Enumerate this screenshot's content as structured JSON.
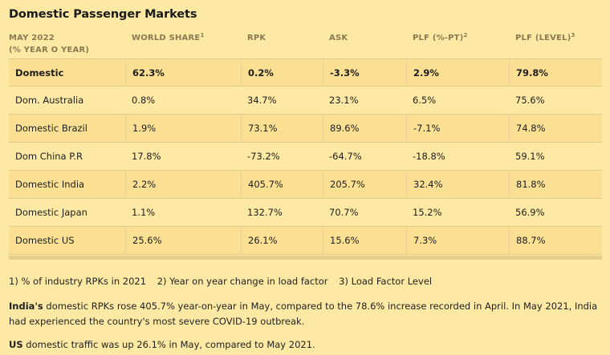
{
  "title": "Domestic Passenger Markets",
  "header": {
    "period_line1": "MAY 2022",
    "period_line2": "(% YEAR O YEAR)",
    "world_share": "WORLD SHARE",
    "world_share_sup": "1",
    "rpk": "RPK",
    "ask": "ASK",
    "plf_pt": "PLF (%-PT)",
    "plf_pt_sup": "2",
    "plf_level": "PLF (LEVEL)",
    "plf_level_sup": "3"
  },
  "rows": [
    {
      "market": "Domestic",
      "world_share": "62.3%",
      "rpk": "0.2%",
      "ask": "-3.3%",
      "plf_pt": "2.9%",
      "plf_level": "79.8%"
    },
    {
      "market": "Dom. Australia",
      "world_share": "0.8%",
      "rpk": "34.7%",
      "ask": "23.1%",
      "plf_pt": "6.5%",
      "plf_level": "75.6%"
    },
    {
      "market": "Domestic Brazil",
      "world_share": "1.9%",
      "rpk": "73.1%",
      "ask": "89.6%",
      "plf_pt": "-7.1%",
      "plf_level": "74.8%"
    },
    {
      "market": "Dom China P.R",
      "world_share": "17.8%",
      "rpk": "-73.2%",
      "ask": "-64.7%",
      "plf_pt": "-18.8%",
      "plf_level": "59.1%"
    },
    {
      "market": "Domestic India",
      "world_share": "2.2%",
      "rpk": "405.7%",
      "ask": "205.7%",
      "plf_pt": "32.4%",
      "plf_level": "81.8%"
    },
    {
      "market": "Domestic Japan",
      "world_share": "1.1%",
      "rpk": "132.7%",
      "ask": "70.7%",
      "plf_pt": "15.2%",
      "plf_level": "56.9%"
    },
    {
      "market": "Domestic US",
      "world_share": "25.6%",
      "rpk": "26.1%",
      "ask": "15.6%",
      "plf_pt": "7.3%",
      "plf_level": "88.7%"
    }
  ],
  "footnotes": {
    "note1": "1) % of industry RPKs in 2021",
    "note2": "2) Year on year change in load factor",
    "note3": "3) Load Factor Level"
  },
  "paragraph_india": {
    "lead": "India's",
    "text": " domestic RPKs rose 405.7% year-on-year in May, compared to the 78.6% increase recorded in April. In May 2021, India had experienced the country's most severe COVID-19 outbreak."
  },
  "paragraph_us": {
    "lead": "US",
    "text": " domestic traffic was up 26.1% in May, compared to May 2021."
  },
  "colors": {
    "background": "#fde9a4",
    "row_shade": "#fbe093",
    "header_text": "#8a7a52"
  }
}
